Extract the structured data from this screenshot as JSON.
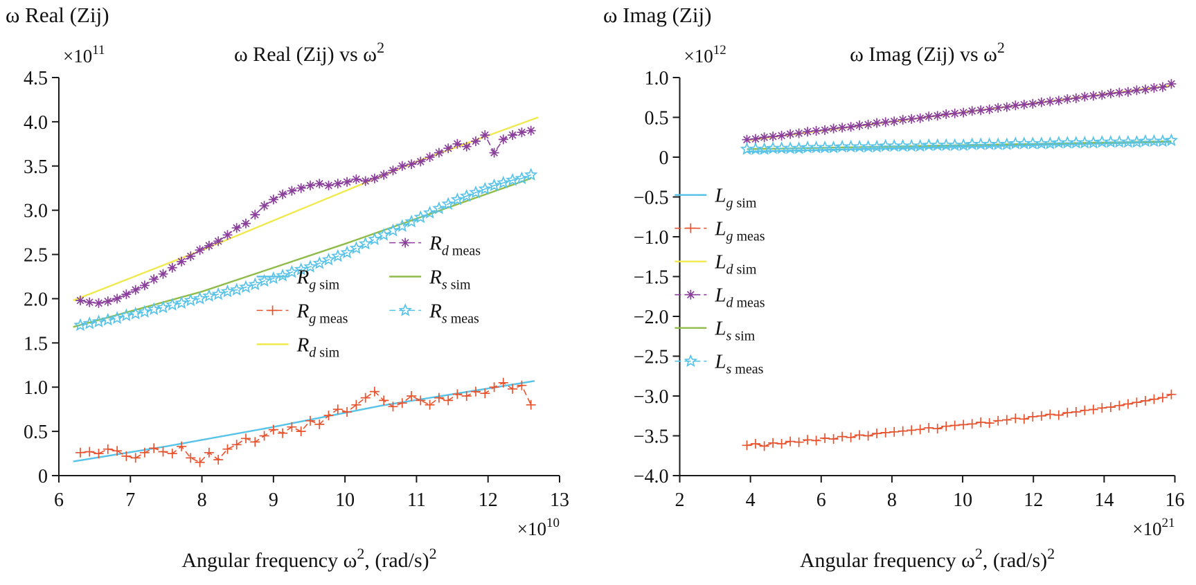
{
  "chart_data": [
    {
      "id": "real",
      "type": "line",
      "corner_label": "ω Real (Zij)",
      "title_text": "ω Real (Zij) vs ω",
      "title_sup": "2",
      "xlabel": [
        {
          "t": "Angular frequency ω"
        },
        {
          "t": "2",
          "sup": true
        },
        {
          "t": ", (rad/s)"
        },
        {
          "t": "2",
          "sup": true
        }
      ],
      "y_multiplier_base": "×10",
      "y_multiplier_exp": "11",
      "x_multiplier_base": "×10",
      "x_multiplier_exp": "10",
      "xlim": [
        6,
        13
      ],
      "ylim": [
        0,
        4.5
      ],
      "xticks": [
        6,
        7,
        8,
        9,
        10,
        11,
        12,
        13
      ],
      "xtick_labels": [
        "6",
        "7",
        "8",
        "9",
        "10",
        "11",
        "12",
        "13"
      ],
      "yticks": [
        0,
        0.5,
        1,
        1.5,
        2,
        2.5,
        3,
        3.5,
        4,
        4.5
      ],
      "ytick_labels": [
        "0",
        "0.5",
        "1.0",
        "1.5",
        "2.0",
        "2.5",
        "3.0",
        "3.5",
        "4.0",
        "4.5"
      ],
      "series": [
        {
          "key": "Rg-sim",
          "label": {
            "main": "R",
            "sub": "g",
            "suffix": "sim"
          },
          "color": "#58c3e8",
          "dash": "solid",
          "marker": "none",
          "x": [
            6.2,
            7.5,
            9.0,
            10.5,
            12.65
          ],
          "y": [
            0.16,
            0.33,
            0.55,
            0.79,
            1.07
          ]
        },
        {
          "key": "Rg-meas",
          "label": {
            "main": "R",
            "sub": "g",
            "suffix": "meas"
          },
          "color": "#e8532f",
          "dash": "dashed",
          "marker": "plus",
          "x_start": 6.3,
          "x_end": 12.6,
          "y": [
            0.26,
            0.27,
            0.25,
            0.3,
            0.28,
            0.22,
            0.2,
            0.26,
            0.31,
            0.27,
            0.25,
            0.33,
            0.2,
            0.15,
            0.26,
            0.18,
            0.3,
            0.35,
            0.42,
            0.38,
            0.45,
            0.52,
            0.48,
            0.55,
            0.5,
            0.62,
            0.58,
            0.68,
            0.75,
            0.72,
            0.8,
            0.88,
            0.95,
            0.85,
            0.78,
            0.82,
            0.9,
            0.85,
            0.8,
            0.88,
            0.85,
            0.92,
            0.9,
            0.95,
            0.93,
            1.0,
            1.05,
            0.98,
            1.02,
            0.8
          ]
        },
        {
          "key": "Rd-sim",
          "label": {
            "main": "R",
            "sub": "d",
            "suffix": "sim"
          },
          "color": "#f0e94e",
          "dash": "solid",
          "marker": "none",
          "x": [
            6.2,
            8.0,
            9.5,
            11.0,
            12.7
          ],
          "y": [
            1.98,
            2.55,
            3.05,
            3.55,
            4.05
          ]
        },
        {
          "key": "Rd-meas",
          "label": {
            "main": "R",
            "sub": "d",
            "suffix": "meas"
          },
          "color": "#8a3f9b",
          "dash": "dashed",
          "marker": "asterisk",
          "x_start": 6.3,
          "x_end": 12.6,
          "y": [
            1.98,
            1.96,
            1.95,
            1.97,
            2.0,
            2.05,
            2.1,
            2.15,
            2.22,
            2.28,
            2.35,
            2.42,
            2.48,
            2.55,
            2.6,
            2.65,
            2.72,
            2.8,
            2.85,
            2.95,
            3.05,
            3.12,
            3.18,
            3.22,
            3.25,
            3.28,
            3.3,
            3.28,
            3.3,
            3.32,
            3.35,
            3.33,
            3.36,
            3.4,
            3.45,
            3.5,
            3.52,
            3.55,
            3.6,
            3.65,
            3.7,
            3.75,
            3.72,
            3.78,
            3.85,
            3.65,
            3.8,
            3.85,
            3.88,
            3.9
          ]
        },
        {
          "key": "Rs-sim",
          "label": {
            "main": "R",
            "sub": "s",
            "suffix": "sim"
          },
          "color": "#8fbc49",
          "dash": "solid",
          "marker": "none",
          "x": [
            6.2,
            8.0,
            10.0,
            12.6
          ],
          "y": [
            1.68,
            2.08,
            2.62,
            3.36
          ]
        },
        {
          "key": "Rs-meas",
          "label": {
            "main": "R",
            "sub": "s",
            "suffix": "meas"
          },
          "color": "#58c3e8",
          "dash": "dashed",
          "marker": "star",
          "x_start": 6.3,
          "x_end": 12.6,
          "y": [
            1.7,
            1.72,
            1.74,
            1.76,
            1.78,
            1.81,
            1.83,
            1.85,
            1.88,
            1.9,
            1.93,
            1.95,
            1.98,
            2.0,
            2.03,
            2.05,
            2.08,
            2.1,
            2.13,
            2.16,
            2.2,
            2.23,
            2.26,
            2.3,
            2.33,
            2.36,
            2.4,
            2.44,
            2.48,
            2.52,
            2.57,
            2.62,
            2.67,
            2.72,
            2.77,
            2.82,
            2.87,
            2.92,
            2.97,
            3.02,
            3.07,
            3.12,
            3.16,
            3.2,
            3.24,
            3.28,
            3.31,
            3.34,
            3.36,
            3.4
          ]
        }
      ]
    },
    {
      "id": "imag",
      "type": "line",
      "corner_label": "ω Imag (Zij)",
      "title_text": "ω Imag (Zij) vs ω",
      "title_sup": "2",
      "xlabel": [
        {
          "t": "Angular frequency ω"
        },
        {
          "t": "2",
          "sup": true
        },
        {
          "t": ", (rad/s)"
        },
        {
          "t": "2",
          "sup": true
        }
      ],
      "y_multiplier_base": "×10",
      "y_multiplier_exp": "12",
      "x_multiplier_base": "×10",
      "x_multiplier_exp": "21",
      "xlim": [
        2,
        16
      ],
      "ylim": [
        -4,
        1
      ],
      "xticks": [
        2,
        4,
        6,
        8,
        10,
        12,
        14,
        16
      ],
      "xtick_labels": [
        "2",
        "4",
        "6",
        "8",
        "10",
        "12",
        "14",
        "16"
      ],
      "yticks": [
        -4,
        -3.5,
        -3,
        -2.5,
        -2,
        -1.5,
        -1,
        -0.5,
        0,
        0.5,
        1
      ],
      "ytick_labels": [
        "−4.0",
        "−3.5",
        "−3.0",
        "−2.5",
        "−2.0",
        "−1.5",
        "−1.0",
        "−0.5",
        "0",
        "0.5",
        "1.0"
      ],
      "series": [
        {
          "key": "Lg-sim",
          "label": {
            "main": "L",
            "sub": "g",
            "suffix": "sim"
          },
          "color": "#58c3e8",
          "dash": "solid",
          "marker": "none",
          "x": [
            3.9,
            15.9
          ],
          "y": [
            0.07,
            0.19
          ]
        },
        {
          "key": "Lg-meas",
          "label": {
            "main": "L",
            "sub": "g",
            "suffix": "meas"
          },
          "color": "#e8532f",
          "dash": "dashed",
          "marker": "plus",
          "x_start": 3.9,
          "x_end": 15.9,
          "y": [
            -3.62,
            -3.6,
            -3.63,
            -3.59,
            -3.6,
            -3.57,
            -3.58,
            -3.55,
            -3.56,
            -3.53,
            -3.54,
            -3.51,
            -3.52,
            -3.49,
            -3.5,
            -3.47,
            -3.46,
            -3.45,
            -3.44,
            -3.43,
            -3.42,
            -3.4,
            -3.41,
            -3.38,
            -3.37,
            -3.36,
            -3.35,
            -3.33,
            -3.34,
            -3.31,
            -3.3,
            -3.28,
            -3.29,
            -3.26,
            -3.25,
            -3.23,
            -3.24,
            -3.21,
            -3.2,
            -3.18,
            -3.17,
            -3.15,
            -3.14,
            -3.12,
            -3.1,
            -3.08,
            -3.06,
            -3.04,
            -3.02,
            -2.98
          ]
        },
        {
          "key": "Ld-sim",
          "label": {
            "main": "L",
            "sub": "d",
            "suffix": "sim"
          },
          "color": "#f0e94e",
          "dash": "solid",
          "marker": "none",
          "x": [
            3.9,
            15.9
          ],
          "y": [
            0.21,
            0.9
          ]
        },
        {
          "key": "Ld-meas",
          "label": {
            "main": "L",
            "sub": "d",
            "suffix": "meas"
          },
          "color": "#8a3f9b",
          "dash": "dashed",
          "marker": "asterisk",
          "x_start": 3.9,
          "x_end": 15.9,
          "y": [
            0.22,
            0.23,
            0.25,
            0.26,
            0.27,
            0.29,
            0.3,
            0.32,
            0.33,
            0.34,
            0.36,
            0.37,
            0.38,
            0.4,
            0.41,
            0.43,
            0.44,
            0.45,
            0.47,
            0.48,
            0.49,
            0.51,
            0.52,
            0.54,
            0.55,
            0.56,
            0.58,
            0.59,
            0.6,
            0.62,
            0.63,
            0.65,
            0.66,
            0.67,
            0.69,
            0.7,
            0.71,
            0.73,
            0.74,
            0.76,
            0.77,
            0.78,
            0.8,
            0.81,
            0.82,
            0.84,
            0.85,
            0.87,
            0.88,
            0.92
          ]
        },
        {
          "key": "Ls-sim",
          "label": {
            "main": "L",
            "sub": "s",
            "suffix": "sim"
          },
          "color": "#8fbc49",
          "dash": "solid",
          "marker": "none",
          "x": [
            3.9,
            15.9
          ],
          "y": [
            0.1,
            0.2
          ]
        },
        {
          "key": "Ls-meas",
          "label": {
            "main": "L",
            "sub": "s",
            "suffix": "meas"
          },
          "color": "#58c3e8",
          "dash": "dashed",
          "marker": "star",
          "x_start": 3.9,
          "x_end": 15.9,
          "y": [
            0.1,
            0.1,
            0.1,
            0.11,
            0.11,
            0.11,
            0.11,
            0.12,
            0.12,
            0.12,
            0.12,
            0.13,
            0.13,
            0.13,
            0.13,
            0.13,
            0.14,
            0.14,
            0.14,
            0.14,
            0.14,
            0.15,
            0.15,
            0.15,
            0.15,
            0.15,
            0.16,
            0.16,
            0.16,
            0.16,
            0.16,
            0.17,
            0.17,
            0.17,
            0.17,
            0.17,
            0.18,
            0.18,
            0.18,
            0.18,
            0.18,
            0.19,
            0.19,
            0.19,
            0.19,
            0.19,
            0.2,
            0.2,
            0.2,
            0.21
          ]
        }
      ]
    }
  ]
}
